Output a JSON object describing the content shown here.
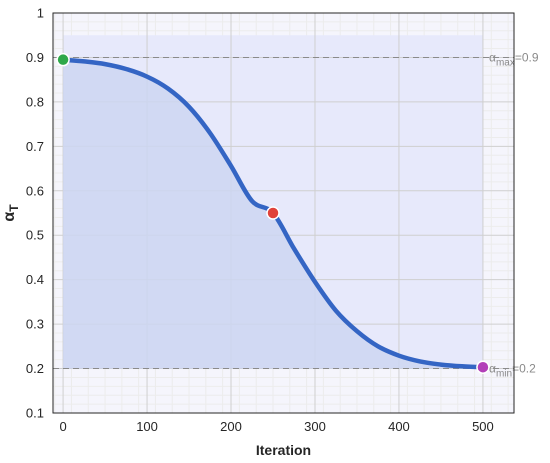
{
  "chart_data": {
    "type": "line",
    "xlabel": "Iteration",
    "ylabel": "α",
    "ylabel_sub": "T",
    "xlim": [
      -12,
      537
    ],
    "ylim": [
      0.1,
      1.0
    ],
    "x_ticks": [
      0,
      100,
      200,
      300,
      400,
      500
    ],
    "y_ticks": [
      0.1,
      0.2,
      0.3,
      0.4,
      0.5,
      0.6,
      0.7,
      0.8,
      0.9,
      1.0
    ],
    "x_tick_labels": [
      "0",
      "100",
      "200",
      "300",
      "400",
      "500"
    ],
    "y_tick_labels": [
      "0.1",
      "0.2",
      "0.3",
      "0.4",
      "0.5",
      "0.6",
      "0.7",
      "0.8",
      "0.9",
      "1"
    ],
    "grid": true,
    "minor_grid": true,
    "series": [
      {
        "color": "#3465c4",
        "x": [
          0,
          25,
          50,
          75,
          100,
          125,
          150,
          175,
          200,
          225,
          250,
          275,
          300,
          325,
          350,
          375,
          400,
          425,
          450,
          475,
          500
        ],
        "y": [
          0.895,
          0.891,
          0.885,
          0.874,
          0.857,
          0.83,
          0.789,
          0.73,
          0.656,
          0.577,
          0.55,
          0.47,
          0.395,
          0.33,
          0.284,
          0.25,
          0.229,
          0.216,
          0.209,
          0.205,
          0.203
        ]
      }
    ],
    "markers": [
      {
        "x": 0,
        "y": 0.895,
        "color": "#2ea84a"
      },
      {
        "x": 250,
        "y": 0.55,
        "color": "#e0423a"
      },
      {
        "x": 500,
        "y": 0.203,
        "color": "#b23fb8"
      }
    ],
    "reference_lines": [
      {
        "y": 0.9,
        "name": "α",
        "sub": "max",
        "value_text": "=0.9"
      },
      {
        "y": 0.2,
        "name": "α",
        "sub": "min",
        "value_text": "=0.2"
      }
    ],
    "band": {
      "x": [
        0,
        500
      ],
      "y": [
        0.2,
        0.95
      ],
      "color": "#e7e9fb"
    },
    "fill_under_curve": {
      "color": "#cdd6f1"
    },
    "colors": {
      "line": "#3465c4",
      "grid": "#cfcfcf",
      "minor_grid": "#ececec",
      "reference_line": "#8a8a8a",
      "background": "#f5f5fc"
    }
  }
}
